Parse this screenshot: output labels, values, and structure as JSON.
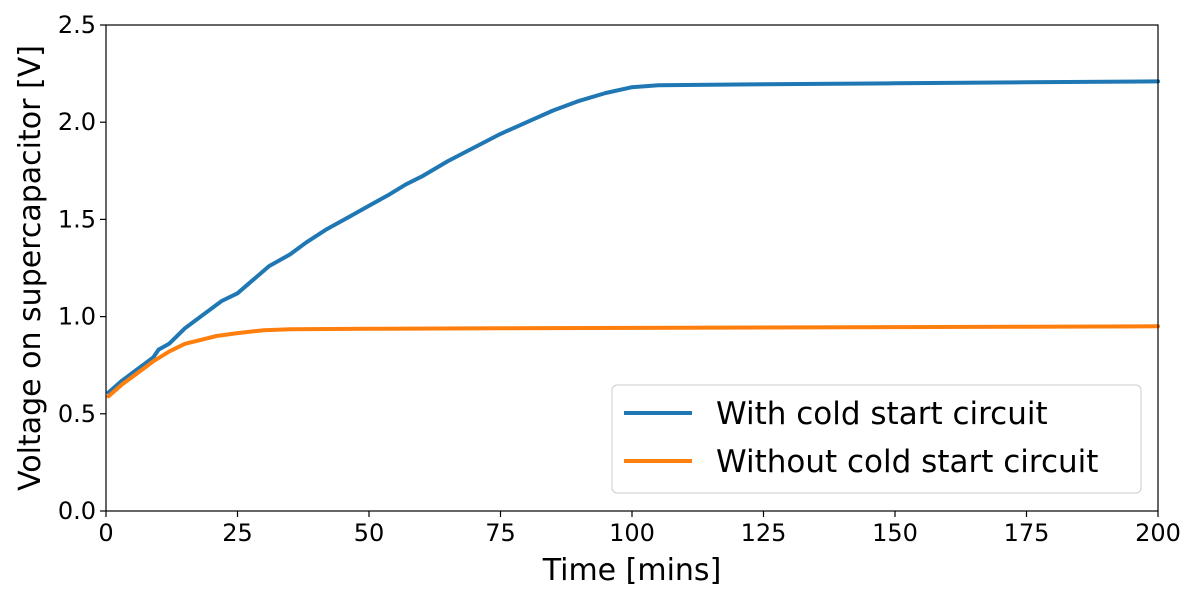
{
  "chart_data": {
    "type": "line",
    "title": "",
    "xlabel": "Time [mins]",
    "ylabel": "Voltage on supercapacitor [V]",
    "xlim": [
      0,
      200
    ],
    "ylim": [
      0.0,
      2.5
    ],
    "x_ticks": [
      "0",
      "25",
      "50",
      "75",
      "100",
      "125",
      "150",
      "175",
      "200"
    ],
    "y_ticks": [
      "0.0",
      "0.5",
      "1.0",
      "1.5",
      "2.0",
      "2.5"
    ],
    "grid": false,
    "legend_position": "bottom-right",
    "series": [
      {
        "name": "With cold start circuit",
        "color": "#1f77b4",
        "x": [
          0.5,
          3,
          5,
          7,
          9,
          10,
          12,
          15,
          17,
          19,
          22,
          25,
          28,
          31,
          35,
          38,
          42,
          46,
          50,
          54,
          57,
          60,
          65,
          70,
          75,
          80,
          85,
          90,
          95,
          100,
          105,
          125,
          150,
          175,
          200
        ],
        "y": [
          0.61,
          0.67,
          0.71,
          0.75,
          0.79,
          0.83,
          0.86,
          0.94,
          0.98,
          1.02,
          1.08,
          1.12,
          1.19,
          1.26,
          1.32,
          1.38,
          1.45,
          1.51,
          1.57,
          1.63,
          1.68,
          1.72,
          1.8,
          1.87,
          1.94,
          2.0,
          2.06,
          2.11,
          2.15,
          2.18,
          2.19,
          2.195,
          2.2,
          2.205,
          2.21
        ]
      },
      {
        "name": "Without cold start circuit",
        "color": "#ff7f0e",
        "x": [
          0.5,
          3,
          6,
          9,
          12,
          15,
          18,
          21,
          25,
          30,
          35,
          50,
          75,
          100,
          125,
          150,
          175,
          200
        ],
        "y": [
          0.59,
          0.65,
          0.71,
          0.77,
          0.82,
          0.86,
          0.88,
          0.9,
          0.915,
          0.93,
          0.935,
          0.937,
          0.94,
          0.942,
          0.944,
          0.946,
          0.948,
          0.95
        ]
      }
    ]
  }
}
